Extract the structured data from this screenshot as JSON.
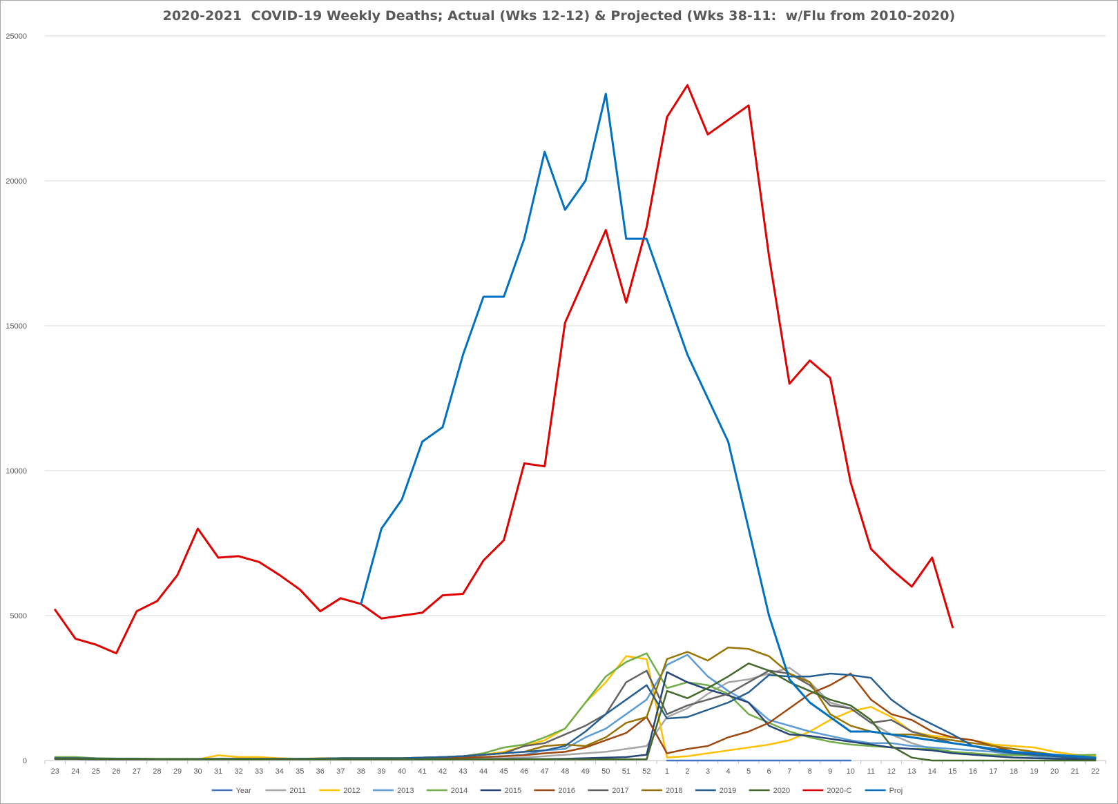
{
  "chart_data": {
    "type": "line",
    "title": "2020-2021  COVID-19 Weekly Deaths; Actual (Wks 12-12) & Projected (Wks 38-11:  w/Flu from 2010-2020)",
    "xlabel": "",
    "ylabel": "",
    "ylim": [
      0,
      25000
    ],
    "yticks": [
      "0",
      "5000",
      "10000",
      "15000",
      "20000",
      "25000"
    ],
    "grid": true,
    "legend_position": "bottom",
    "categories": [
      "23",
      "24",
      "25",
      "26",
      "27",
      "28",
      "29",
      "30",
      "31",
      "32",
      "33",
      "34",
      "35",
      "36",
      "37",
      "38",
      "39",
      "40",
      "41",
      "42",
      "43",
      "44",
      "45",
      "46",
      "47",
      "48",
      "49",
      "50",
      "51",
      "52",
      "1",
      "2",
      "3",
      "4",
      "5",
      "6",
      "7",
      "8",
      "9",
      "10",
      "11",
      "12",
      "13",
      "14",
      "15",
      "16",
      "17",
      "18",
      "19",
      "20",
      "21",
      "22"
    ],
    "series": [
      {
        "name": "Year",
        "color": "#4472c4",
        "values": [
          null,
          null,
          null,
          null,
          null,
          null,
          null,
          null,
          null,
          null,
          null,
          null,
          null,
          null,
          null,
          null,
          null,
          null,
          null,
          null,
          null,
          null,
          null,
          null,
          null,
          null,
          null,
          null,
          null,
          null,
          0,
          0,
          0,
          0,
          0,
          0,
          0,
          0,
          0,
          0,
          null,
          null,
          null,
          null,
          null,
          null,
          null,
          null,
          null,
          null,
          null,
          null
        ]
      },
      {
        "name": "2011",
        "color": "#a5a5a5",
        "values": [
          50,
          50,
          40,
          40,
          40,
          40,
          40,
          40,
          40,
          40,
          40,
          40,
          40,
          40,
          40,
          40,
          40,
          40,
          50,
          50,
          50,
          60,
          80,
          100,
          150,
          200,
          250,
          300,
          400,
          500,
          1500,
          1800,
          2300,
          2700,
          2800,
          3000,
          3200,
          2700,
          2000,
          1800,
          1300,
          900,
          600,
          400,
          300,
          200,
          150,
          100,
          80,
          60,
          50,
          50
        ]
      },
      {
        "name": "2012",
        "color": "#ffc000",
        "values": [
          80,
          80,
          70,
          60,
          60,
          50,
          40,
          40,
          180,
          120,
          120,
          80,
          60,
          80,
          80,
          80,
          80,
          80,
          100,
          120,
          150,
          200,
          300,
          500,
          700,
          1100,
          2000,
          2700,
          3600,
          3500,
          100,
          150,
          250,
          350,
          450,
          550,
          700,
          1000,
          1400,
          1700,
          1850,
          1500,
          1000,
          850,
          800,
          700,
          550,
          500,
          450,
          300,
          200,
          150
        ]
      },
      {
        "name": "2013",
        "color": "#5b9bd5",
        "values": [
          80,
          80,
          70,
          60,
          60,
          50,
          40,
          40,
          50,
          50,
          50,
          50,
          60,
          60,
          60,
          60,
          60,
          60,
          80,
          80,
          100,
          120,
          150,
          200,
          350,
          400,
          800,
          1100,
          1600,
          2100,
          3300,
          3650,
          2900,
          2400,
          2000,
          1400,
          1200,
          1000,
          850,
          700,
          600,
          600,
          500,
          450,
          400,
          350,
          300,
          200,
          150,
          100,
          80,
          80
        ]
      },
      {
        "name": "2014",
        "color": "#70ad47",
        "values": [
          120,
          120,
          80,
          70,
          70,
          60,
          60,
          60,
          60,
          60,
          60,
          60,
          60,
          70,
          70,
          70,
          80,
          80,
          100,
          120,
          150,
          250,
          450,
          550,
          800,
          1100,
          2000,
          2900,
          3400,
          3700,
          2500,
          2700,
          2600,
          2300,
          1600,
          1300,
          1000,
          800,
          650,
          550,
          500,
          450,
          400,
          400,
          300,
          250,
          200,
          180,
          180,
          150,
          180,
          200
        ]
      },
      {
        "name": "2015",
        "color": "#264478",
        "values": [
          50,
          50,
          40,
          40,
          40,
          40,
          40,
          40,
          40,
          40,
          40,
          40,
          40,
          40,
          40,
          40,
          40,
          40,
          40,
          40,
          40,
          40,
          50,
          50,
          50,
          60,
          80,
          100,
          120,
          200,
          3050,
          2700,
          2450,
          2250,
          2000,
          1200,
          900,
          850,
          750,
          650,
          550,
          450,
          400,
          350,
          250,
          200,
          150,
          100,
          80,
          60,
          50,
          50
        ]
      },
      {
        "name": "2016",
        "color": "#9e480e",
        "values": [
          60,
          60,
          50,
          50,
          50,
          50,
          40,
          40,
          50,
          50,
          50,
          50,
          50,
          60,
          60,
          60,
          60,
          60,
          80,
          80,
          100,
          120,
          150,
          180,
          250,
          300,
          450,
          700,
          950,
          1500,
          250,
          400,
          500,
          800,
          1000,
          1300,
          1800,
          2300,
          2600,
          3000,
          2100,
          1600,
          1400,
          1000,
          800,
          700,
          500,
          300,
          200,
          150,
          100,
          80
        ]
      },
      {
        "name": "2017",
        "color": "#636363",
        "values": [
          80,
          80,
          70,
          60,
          60,
          50,
          50,
          50,
          50,
          50,
          50,
          50,
          60,
          60,
          80,
          80,
          80,
          80,
          100,
          120,
          150,
          200,
          250,
          500,
          600,
          900,
          1200,
          1600,
          2700,
          3100,
          1600,
          1900,
          2100,
          2300,
          2700,
          3100,
          3000,
          2600,
          1900,
          1800,
          1300,
          1400,
          1000,
          800,
          600,
          500,
          400,
          300,
          200,
          150,
          100,
          80
        ]
      },
      {
        "name": "2018",
        "color": "#997300",
        "values": [
          80,
          80,
          70,
          60,
          60,
          50,
          50,
          50,
          60,
          60,
          60,
          60,
          60,
          70,
          80,
          80,
          80,
          80,
          100,
          120,
          150,
          200,
          250,
          300,
          500,
          550,
          500,
          800,
          1300,
          1500,
          3500,
          3750,
          3450,
          3900,
          3850,
          3600,
          3000,
          2700,
          1600,
          1200,
          1000,
          900,
          900,
          800,
          700,
          600,
          500,
          400,
          300,
          200,
          150,
          100
        ]
      },
      {
        "name": "2019",
        "color": "#255e91",
        "values": [
          80,
          80,
          70,
          60,
          60,
          50,
          50,
          50,
          60,
          60,
          60,
          60,
          60,
          70,
          80,
          80,
          80,
          80,
          100,
          120,
          150,
          200,
          250,
          300,
          350,
          500,
          1000,
          1600,
          2100,
          2600,
          1450,
          1500,
          1750,
          2000,
          2350,
          2950,
          2900,
          2900,
          3000,
          2950,
          2850,
          2100,
          1600,
          1250,
          900,
          500,
          350,
          250,
          200,
          150,
          100,
          80
        ]
      },
      {
        "name": "2020",
        "color": "#43682b",
        "values": [
          60,
          60,
          50,
          50,
          50,
          50,
          40,
          40,
          40,
          40,
          40,
          40,
          40,
          40,
          40,
          40,
          40,
          40,
          40,
          40,
          40,
          40,
          40,
          40,
          40,
          40,
          40,
          40,
          40,
          40,
          2400,
          2150,
          2500,
          2900,
          3350,
          3100,
          2700,
          2400,
          2100,
          1900,
          1400,
          500,
          100,
          0,
          0,
          0,
          0,
          0,
          0,
          0,
          0,
          0
        ]
      },
      {
        "name": "2020-C",
        "color": "#e00000",
        "values": [
          5200,
          4200,
          4000,
          3700,
          5150,
          5500,
          6400,
          8000,
          7000,
          7050,
          6850,
          6400,
          5900,
          5150,
          5600,
          5400,
          4900,
          5000,
          5100,
          5700,
          5750,
          6900,
          7600,
          10250,
          10150,
          15100,
          16700,
          18300,
          15800,
          18400,
          22200,
          23300,
          21600,
          22100,
          22600,
          17400,
          13000,
          13800,
          13200,
          9600,
          7300,
          6600,
          6000,
          7000,
          4600,
          null,
          null,
          null,
          null,
          null,
          null,
          null
        ]
      },
      {
        "name": "Proj",
        "color": "#0070c0",
        "values": [
          null,
          null,
          null,
          null,
          null,
          null,
          null,
          null,
          null,
          null,
          null,
          null,
          null,
          null,
          null,
          5400,
          8000,
          9000,
          11000,
          11500,
          14000,
          16000,
          16000,
          18000,
          21000,
          19000,
          20000,
          23000,
          18000,
          18000,
          16000,
          14000,
          12500,
          11000,
          8000,
          5000,
          2800,
          2000,
          1500,
          1000,
          1000,
          900,
          800,
          700,
          600,
          500,
          400,
          300,
          250,
          200,
          150,
          100
        ]
      }
    ]
  }
}
